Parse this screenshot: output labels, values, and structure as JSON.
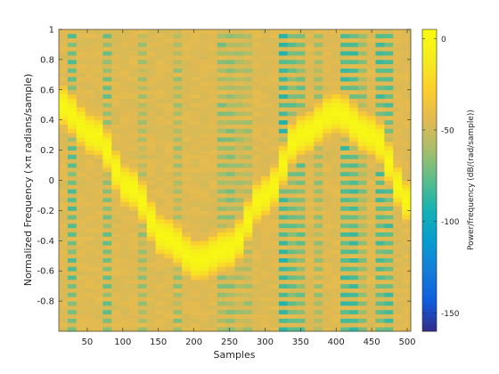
{
  "chart_data": {
    "type": "heatmap",
    "title": "",
    "xlabel": "Samples",
    "ylabel": "Normalized Frequency  (×π radians/sample)",
    "colorbar_label": "Power/frequency (dB/(rad/sample))",
    "x_range": [
      10,
      505
    ],
    "y_range": [
      -1,
      1
    ],
    "x_ticks": [
      50,
      100,
      150,
      200,
      250,
      300,
      350,
      400,
      450,
      500
    ],
    "y_ticks": [
      -0.8,
      -0.6,
      -0.4,
      -0.2,
      0,
      0.2,
      0.4,
      0.6,
      0.8,
      1
    ],
    "colorbar_range": [
      -160,
      5
    ],
    "colorbar_ticks": [
      -150,
      -100,
      -50,
      0
    ],
    "colormap": "parula",
    "grid": false,
    "time_bins": 40,
    "freq_bins": 70,
    "background_level_db": -45,
    "ridge": {
      "description": "bright yellow band following a sinusoidal frequency trajectory",
      "peak_db": 0,
      "half_width": 0.09,
      "points": [
        {
          "x": 10,
          "y": 0.5
        },
        {
          "x": 60,
          "y": 0.3
        },
        {
          "x": 110,
          "y": -0.05
        },
        {
          "x": 160,
          "y": -0.38
        },
        {
          "x": 205,
          "y": -0.53
        },
        {
          "x": 250,
          "y": -0.45
        },
        {
          "x": 300,
          "y": -0.1
        },
        {
          "x": 350,
          "y": 0.3
        },
        {
          "x": 400,
          "y": 0.45
        },
        {
          "x": 450,
          "y": 0.3
        },
        {
          "x": 505,
          "y": -0.15
        }
      ]
    },
    "noise_columns": [
      {
        "x": 30,
        "level_db": -75
      },
      {
        "x": 80,
        "level_db": -70
      },
      {
        "x": 130,
        "level_db": -60
      },
      {
        "x": 175,
        "level_db": -62
      },
      {
        "x": 245,
        "level_db": -65
      },
      {
        "x": 272,
        "level_db": -58
      },
      {
        "x": 325,
        "level_db": -85
      },
      {
        "x": 345,
        "level_db": -72
      },
      {
        "x": 375,
        "level_db": -62
      },
      {
        "x": 420,
        "level_db": -80
      },
      {
        "x": 440,
        "level_db": -65
      },
      {
        "x": 470,
        "level_db": -78
      }
    ]
  }
}
